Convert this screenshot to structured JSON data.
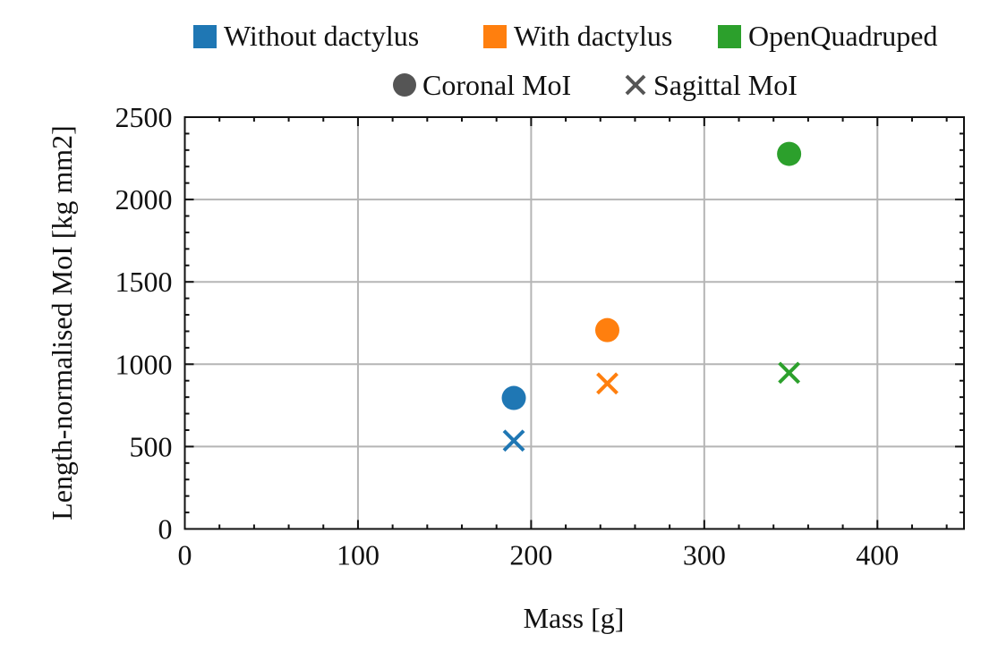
{
  "chart_data": {
    "type": "scatter",
    "title": "",
    "xlabel": "Mass [g]",
    "ylabel": "Length-normalised MoI [kg mm2]",
    "xlim": [
      0,
      450
    ],
    "ylim": [
      0,
      2500
    ],
    "xticks": [
      "0",
      "100",
      "200",
      "300",
      "400"
    ],
    "yticks": [
      "0",
      "500",
      "1000",
      "1500",
      "2000",
      "2500"
    ],
    "grid": true,
    "legend_placement": "top (above plot)",
    "legend": {
      "colors": [
        {
          "label": "Without dactylus",
          "color": "#1f77b4"
        },
        {
          "label": "With dactylus",
          "color": "#ff7f0e"
        },
        {
          "label": "OpenQuadruped",
          "color": "#2ca02c"
        }
      ],
      "markers": [
        {
          "label": "Coronal MoI",
          "marker": "circle",
          "color": "#555555"
        },
        {
          "label": "Sagittal MoI",
          "marker": "x",
          "color": "#555555"
        }
      ]
    },
    "series": [
      {
        "name": "Without dactylus",
        "color": "#1f77b4",
        "points": [
          {
            "x": 190,
            "y": 795,
            "marker": "circle",
            "metric": "Coronal MoI"
          },
          {
            "x": 190,
            "y": 536,
            "marker": "x",
            "metric": "Sagittal MoI"
          }
        ]
      },
      {
        "name": "With dactylus",
        "color": "#ff7f0e",
        "points": [
          {
            "x": 244,
            "y": 1207,
            "marker": "circle",
            "metric": "Coronal MoI"
          },
          {
            "x": 244,
            "y": 883,
            "marker": "x",
            "metric": "Sagittal MoI"
          }
        ]
      },
      {
        "name": "OpenQuadruped",
        "color": "#2ca02c",
        "points": [
          {
            "x": 349,
            "y": 2277,
            "marker": "circle",
            "metric": "Coronal MoI"
          },
          {
            "x": 349,
            "y": 948,
            "marker": "x",
            "metric": "Sagittal MoI"
          }
        ]
      }
    ]
  }
}
